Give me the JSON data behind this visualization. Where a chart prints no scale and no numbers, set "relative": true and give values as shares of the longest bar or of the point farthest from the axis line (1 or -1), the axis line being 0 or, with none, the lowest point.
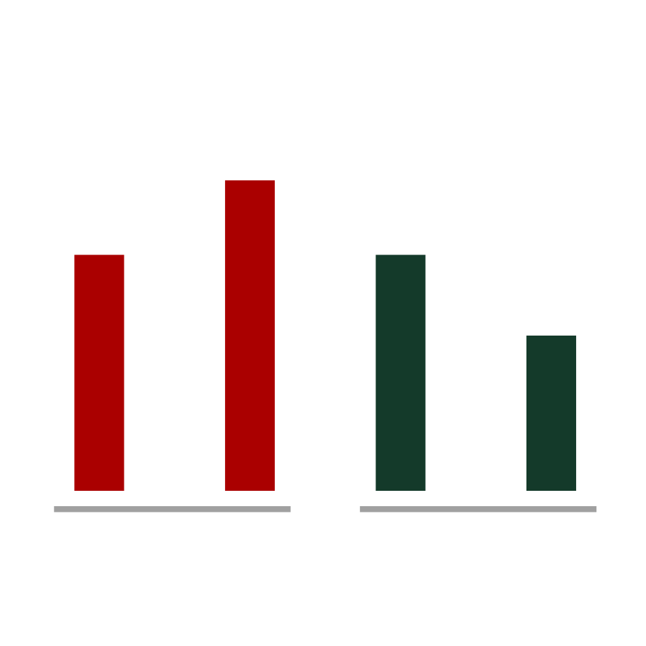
{
  "chart_data": {
    "type": "bar",
    "relative": true,
    "categories": [
      null,
      null,
      null,
      null
    ],
    "values": [
      0.76,
      1,
      0.76,
      0.5
    ],
    "colors": [
      "#aa0000",
      "#aa0000",
      "#143a2a",
      "#143a2a"
    ]
  }
}
